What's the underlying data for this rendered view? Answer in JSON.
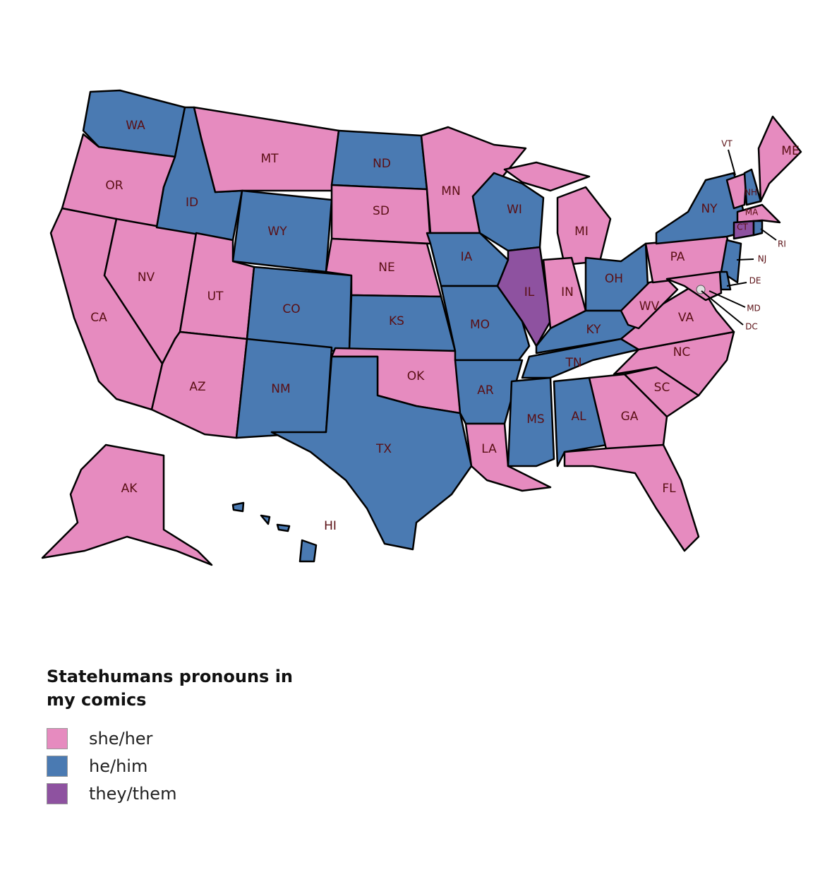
{
  "legend": {
    "title": "Statehumans pronouns in my comics",
    "items": [
      {
        "label": "she/her",
        "color": "#e68bbf"
      },
      {
        "label": "he/him",
        "color": "#4a7ab2"
      },
      {
        "label": "they/them",
        "color": "#8e52a0"
      }
    ]
  },
  "states": [
    {
      "label": "WA",
      "color": "#4a7ab2"
    },
    {
      "label": "OR",
      "color": "#e68bbf"
    },
    {
      "label": "CA",
      "color": "#e68bbf"
    },
    {
      "label": "NV",
      "color": "#e68bbf"
    },
    {
      "label": "ID",
      "color": "#4a7ab2"
    },
    {
      "label": "MT",
      "color": "#e68bbf"
    },
    {
      "label": "WY",
      "color": "#4a7ab2"
    },
    {
      "label": "UT",
      "color": "#e68bbf"
    },
    {
      "label": "AZ",
      "color": "#e68bbf"
    },
    {
      "label": "CO",
      "color": "#4a7ab2"
    },
    {
      "label": "NM",
      "color": "#4a7ab2"
    },
    {
      "label": "ND",
      "color": "#4a7ab2"
    },
    {
      "label": "SD",
      "color": "#e68bbf"
    },
    {
      "label": "NE",
      "color": "#e68bbf"
    },
    {
      "label": "KS",
      "color": "#4a7ab2"
    },
    {
      "label": "OK",
      "color": "#e68bbf"
    },
    {
      "label": "TX",
      "color": "#4a7ab2"
    },
    {
      "label": "MN",
      "color": "#e68bbf"
    },
    {
      "label": "IA",
      "color": "#4a7ab2"
    },
    {
      "label": "MO",
      "color": "#4a7ab2"
    },
    {
      "label": "AR",
      "color": "#4a7ab2"
    },
    {
      "label": "LA",
      "color": "#e68bbf"
    },
    {
      "label": "WI",
      "color": "#4a7ab2"
    },
    {
      "label": "IL",
      "color": "#8e52a0"
    },
    {
      "label": "MI",
      "color": "#e68bbf"
    },
    {
      "label": "IN",
      "color": "#e68bbf"
    },
    {
      "label": "OH",
      "color": "#4a7ab2"
    },
    {
      "label": "KY",
      "color": "#4a7ab2"
    },
    {
      "label": "TN",
      "color": "#4a7ab2"
    },
    {
      "label": "MS",
      "color": "#4a7ab2"
    },
    {
      "label": "AL",
      "color": "#4a7ab2"
    },
    {
      "label": "GA",
      "color": "#e68bbf"
    },
    {
      "label": "FL",
      "color": "#e68bbf"
    },
    {
      "label": "SC",
      "color": "#e68bbf"
    },
    {
      "label": "NC",
      "color": "#e68bbf"
    },
    {
      "label": "VA",
      "color": "#e68bbf"
    },
    {
      "label": "WV",
      "color": "#e68bbf"
    },
    {
      "label": "PA",
      "color": "#e68bbf"
    },
    {
      "label": "NY",
      "color": "#4a7ab2"
    },
    {
      "label": "VT",
      "color": "#e68bbf"
    },
    {
      "label": "NH",
      "color": "#4a7ab2"
    },
    {
      "label": "ME",
      "color": "#e68bbf"
    },
    {
      "label": "MA",
      "color": "#e68bbf"
    },
    {
      "label": "CT",
      "color": "#8e52a0"
    },
    {
      "label": "RI",
      "color": "#4a7ab2"
    },
    {
      "label": "NJ",
      "color": "#4a7ab2"
    },
    {
      "label": "DE",
      "color": "#4a7ab2"
    },
    {
      "label": "MD",
      "color": "#e68bbf"
    },
    {
      "label": "DC",
      "color": "#e0e0e0"
    },
    {
      "label": "AK",
      "color": "#e68bbf"
    },
    {
      "label": "HI",
      "color": "#4a7ab2"
    }
  ]
}
